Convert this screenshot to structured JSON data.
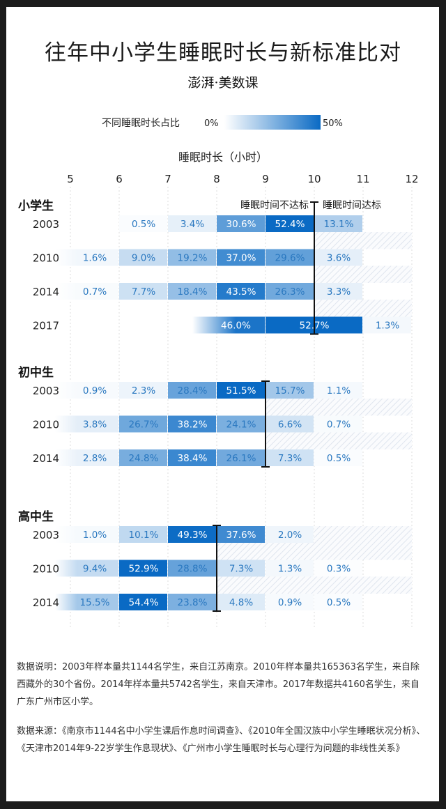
{
  "title": "往年中小学生睡眠时长与新标准比对",
  "logo": "澎湃·美数课",
  "legend": {
    "label": "不同睡眠时长占比",
    "min_label": "0%",
    "max_label": "50%",
    "min_color": "#ffffff",
    "max_color": "#0a6ac4"
  },
  "notes": {
    "description": "数据说明：2003年样本量共1144名学生，来自江苏南京。2010年样本量共165363名学生，来自除西藏外的30个省份。2014年样本量共5742名学生，来自天津市。2017年数据共4160名学生，来自广东广州市区小学。",
    "source": "数据来源：《南京市1144名中小学生课后作息时间调查》、《2010年全国汉族中小学生睡眠状况分析》、《天津市2014年9-22岁学生作息现状》、《广州市小学生睡眠时长与心理行为问题的非线性关系》"
  },
  "chart_data": {
    "type": "heatmap",
    "xlabel": "睡眠时长（小时）",
    "x_ticks": [
      "5",
      "6",
      "7",
      "8",
      "9",
      "10",
      "11",
      "12"
    ],
    "xlim": [
      5,
      12
    ],
    "grid": true,
    "color_scale": {
      "min": 0,
      "max": 50,
      "unit": "%"
    },
    "below_label": "睡眠时间不达标",
    "above_label": "睡眠时间达标",
    "groups": [
      {
        "name": "小学生",
        "standard_hours": 10,
        "rows": [
          {
            "year": "2003",
            "cells": [
              [
                6,
                7,
                0.5
              ],
              [
                7,
                8,
                3.4
              ],
              [
                8,
                9,
                30.6
              ],
              [
                9,
                10,
                52.4
              ],
              [
                10,
                11,
                13.1
              ]
            ]
          },
          {
            "year": "2010",
            "cells": [
              [
                5,
                6,
                1.6
              ],
              [
                6,
                7,
                9.0
              ],
              [
                7,
                8,
                19.2
              ],
              [
                8,
                9,
                37.0
              ],
              [
                9,
                10,
                29.6
              ],
              [
                10,
                11,
                3.6
              ]
            ]
          },
          {
            "year": "2014",
            "cells": [
              [
                5,
                6,
                0.7
              ],
              [
                6,
                7,
                7.7
              ],
              [
                7,
                8,
                18.4
              ],
              [
                8,
                9,
                43.5
              ],
              [
                9,
                10,
                26.3
              ],
              [
                10,
                11,
                3.3
              ]
            ]
          },
          {
            "year": "2017",
            "cells": [
              [
                7.5,
                9,
                46.0
              ],
              [
                9,
                11,
                52.7
              ],
              [
                11,
                12,
                1.3
              ]
            ]
          }
        ]
      },
      {
        "name": "初中生",
        "standard_hours": 9,
        "rows": [
          {
            "year": "2003",
            "cells": [
              [
                5,
                6,
                0.9
              ],
              [
                6,
                7,
                2.3
              ],
              [
                7,
                8,
                28.4
              ],
              [
                8,
                9,
                51.5
              ],
              [
                9,
                10,
                15.7
              ],
              [
                10,
                11,
                1.1
              ]
            ]
          },
          {
            "year": "2010",
            "cells": [
              [
                5,
                6,
                3.8
              ],
              [
                6,
                7,
                26.7
              ],
              [
                7,
                8,
                38.2
              ],
              [
                8,
                9,
                24.1
              ],
              [
                9,
                10,
                6.6
              ],
              [
                10,
                11,
                0.7
              ]
            ]
          },
          {
            "year": "2014",
            "cells": [
              [
                5,
                6,
                2.8
              ],
              [
                6,
                7,
                24.8
              ],
              [
                7,
                8,
                38.4
              ],
              [
                8,
                9,
                26.1
              ],
              [
                9,
                10,
                7.3
              ],
              [
                10,
                11,
                0.5
              ]
            ]
          }
        ]
      },
      {
        "name": "高中生",
        "standard_hours": 8,
        "rows": [
          {
            "year": "2003",
            "cells": [
              [
                5,
                6,
                1.0
              ],
              [
                6,
                7,
                10.1
              ],
              [
                7,
                8,
                49.3
              ],
              [
                8,
                9,
                37.6
              ],
              [
                9,
                10,
                2.0
              ]
            ]
          },
          {
            "year": "2010",
            "cells": [
              [
                5,
                6,
                9.4
              ],
              [
                6,
                7,
                52.9
              ],
              [
                7,
                8,
                28.8
              ],
              [
                8,
                9,
                7.3
              ],
              [
                9,
                10,
                1.3
              ],
              [
                10,
                11,
                0.3
              ]
            ]
          },
          {
            "year": "2014",
            "cells": [
              [
                5,
                6,
                15.5
              ],
              [
                6,
                7,
                54.4
              ],
              [
                7,
                8,
                23.8
              ],
              [
                8,
                9,
                4.8
              ],
              [
                9,
                10,
                0.9
              ],
              [
                10,
                11,
                0.5
              ]
            ]
          }
        ]
      }
    ]
  }
}
